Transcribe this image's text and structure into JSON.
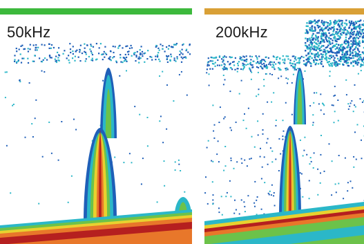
{
  "echograms": [
    {
      "frequency_label": "50kHz",
      "top_bar_color": "#3cb93c"
    },
    {
      "frequency_label": "200kHz",
      "top_bar_color": "#d9a036"
    }
  ],
  "colors": {
    "weak_echo": "#1f5fb8",
    "medium_echo": "#2bb7c8",
    "green_echo": "#6cc24a",
    "yellow_echo": "#e8d12f",
    "orange_echo": "#e8772a",
    "strong_echo": "#b51f1f",
    "background": "#ffffff"
  }
}
